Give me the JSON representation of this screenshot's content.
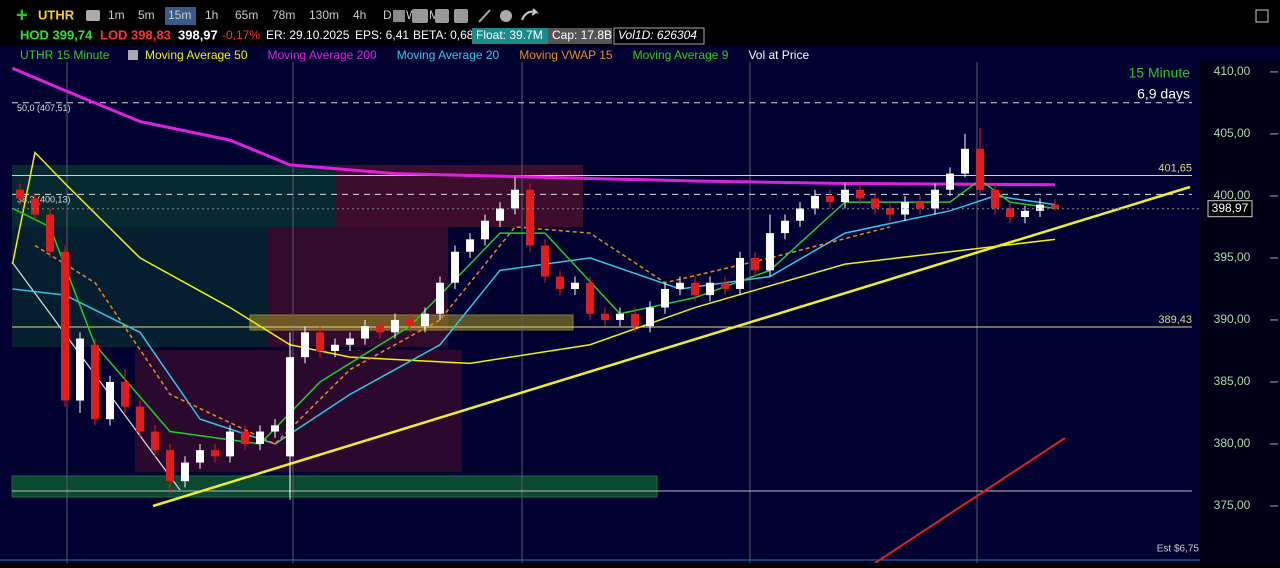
{
  "toolbar": {
    "symbol": "UTHR",
    "timeframes": [
      "1m",
      "5m",
      "15m",
      "1h",
      "65m",
      "78m",
      "130m",
      "4h",
      "D",
      "W",
      "M"
    ]
  },
  "quote": {
    "hod": "HOD 399,74",
    "lod": "LOD 398,83",
    "change": "-0,17%",
    "er": "ER: 29.10.2025",
    "eps": "EPS: 6,41",
    "beta": "BETA: 0,68",
    "float": "Float: 39.7M",
    "cap": "Cap: 17.8B",
    "vol": "Vol1D: 626304"
  },
  "chart_data": {
    "type": "candlestick",
    "title": "UTHR 15 Minute",
    "period": "15 Minute",
    "span": "6,9 days",
    "estimate": "Est $6,75",
    "extra_indicator": "Vol at Price",
    "up_color": "#ffffff",
    "down_color": "#e31b1b",
    "open": [
      400.5,
      399.8,
      398.5,
      395.5,
      383.5,
      388,
      382,
      385,
      383,
      381,
      379.5,
      377,
      378.5,
      379.5,
      379,
      381,
      380,
      381,
      379,
      387,
      389,
      387.5,
      388,
      388.5,
      389.5,
      389,
      390,
      389.5,
      390.5,
      393,
      395.5,
      396.5,
      398,
      399,
      400.5,
      396,
      393.5,
      392.5,
      393,
      390.5,
      390,
      390.5,
      389.5,
      391,
      392.5,
      393,
      392,
      393,
      392.5,
      395,
      394,
      397,
      398,
      399,
      400,
      399.5,
      400.5,
      399.8,
      399,
      398.5,
      399.5,
      399,
      400.5,
      401.8,
      403.8,
      400.5,
      399,
      398.3,
      398.8,
      399.3
    ],
    "high": [
      401,
      400.2,
      399,
      396,
      389,
      388.5,
      385.5,
      386,
      383.5,
      381.5,
      380,
      379,
      380,
      380,
      381.5,
      381.5,
      381.5,
      382,
      389,
      389.5,
      389.5,
      388.5,
      389,
      390,
      390,
      390.5,
      390.5,
      391,
      393.5,
      396,
      397,
      398.5,
      399.5,
      401.5,
      401,
      396.5,
      394,
      393.5,
      393.5,
      391,
      391,
      391,
      391.5,
      393,
      393.5,
      393.5,
      393.5,
      393.5,
      395.5,
      395.5,
      398.5,
      398.5,
      399.5,
      400.5,
      400.5,
      401,
      401,
      400.2,
      399.5,
      400,
      400,
      401,
      402.3,
      405,
      405.5,
      401,
      399.5,
      399.2,
      399.8,
      399.74
    ],
    "low": [
      399.3,
      398,
      395,
      383,
      382.5,
      381.5,
      381.5,
      382.5,
      380.5,
      379,
      376,
      376.5,
      378,
      378.5,
      378.5,
      379.5,
      379.5,
      380.5,
      375.5,
      386.5,
      387,
      387,
      387.5,
      388,
      388.5,
      388.5,
      389,
      389,
      390,
      392.5,
      395,
      396,
      397.5,
      398.5,
      395.5,
      393,
      392,
      392,
      390,
      389.5,
      389.5,
      389,
      389,
      390.5,
      392,
      391.5,
      391.5,
      392,
      392,
      393.5,
      393.5,
      396.5,
      397.5,
      398.5,
      399,
      399,
      399.3,
      398.5,
      398,
      398,
      398.5,
      398.5,
      400,
      401.5,
      400,
      398.5,
      397.8,
      397.8,
      398.3,
      398.83
    ],
    "close": [
      399.8,
      398.5,
      395.5,
      383.5,
      388.5,
      382,
      385,
      383,
      381,
      379.5,
      377,
      378.5,
      379.5,
      379,
      381,
      380,
      381,
      381.5,
      387,
      389,
      387.5,
      388,
      388.5,
      389.5,
      389,
      390,
      389.5,
      390.5,
      393,
      395.5,
      396.5,
      398,
      399,
      400.5,
      396,
      393.5,
      392.5,
      393,
      390.5,
      390,
      390.5,
      389.5,
      391,
      392.5,
      393,
      392,
      393,
      392.5,
      395,
      394,
      397,
      398,
      399,
      400,
      399.5,
      400.5,
      399.8,
      399,
      398.5,
      399.5,
      399,
      400.5,
      401.8,
      403.8,
      400.5,
      399,
      398.3,
      398.8,
      399.3,
      398.97
    ],
    "last": {
      "value": 398.97,
      "label": "398,97"
    },
    "series": [
      {
        "name": "Moving Average 50",
        "color": "#f2f200",
        "x": [
          -0.5,
          1,
          3,
          8,
          14,
          18,
          22,
          30,
          38,
          45,
          55,
          69
        ],
        "values": [
          394.5,
          403.5,
          401,
          395,
          391,
          388,
          387,
          386.5,
          388,
          391,
          394.5,
          396.5
        ]
      },
      {
        "name": "Moving Average 200",
        "color": "#e020e0",
        "x": [
          -0.5,
          3,
          8,
          14,
          18,
          25,
          35,
          45,
          55,
          69
        ],
        "values": [
          410.3,
          408.5,
          406,
          404.5,
          402.5,
          401.8,
          401.5,
          401.2,
          401,
          400.9
        ]
      },
      {
        "name": "Moving Average 20",
        "color": "#30c8e8",
        "x": [
          -0.5,
          3,
          8,
          12,
          17,
          22,
          28,
          32,
          38,
          44,
          50,
          55,
          62,
          65,
          69
        ],
        "values": [
          392.5,
          392,
          389,
          382,
          380,
          384,
          388,
          394,
          395,
          392.5,
          393.5,
          397,
          398.8,
          400,
          399.3
        ]
      },
      {
        "name": "Moving VWAP 15",
        "color": "#e88a20",
        "x": [
          1,
          5,
          10,
          17,
          22,
          28,
          33,
          38,
          43,
          50,
          58
        ],
        "values": [
          396,
          393,
          384,
          380,
          386,
          390,
          397.5,
          397,
          393,
          395,
          397.5
        ]
      },
      {
        "name": "Moving Average 9",
        "color": "#20d020",
        "x": [
          -0.5,
          2,
          5,
          10,
          16,
          20,
          26,
          32,
          35,
          40,
          45,
          50,
          55,
          62,
          64,
          66,
          69
        ],
        "values": [
          399,
          397.5,
          388,
          381,
          380,
          385,
          389.5,
          397,
          397,
          390.5,
          391.8,
          394,
          399.5,
          399.5,
          401.3,
          399.5,
          399
        ]
      }
    ],
    "levels": [
      {
        "value": 401.65,
        "label": "401,65"
      },
      {
        "value": 389.43,
        "label": "389,43"
      }
    ],
    "fib": [
      {
        "value": 407.51,
        "label": "50,0 (407,51)"
      },
      {
        "value": 400.13,
        "label": "38,2 (400,13)"
      }
    ],
    "ylim": [
      370.4,
      410.8
    ],
    "yticks": [
      {
        "value": 375,
        "label": "375,00"
      },
      {
        "value": 380,
        "label": "380,00"
      },
      {
        "value": 385,
        "label": "385,00"
      },
      {
        "value": 390,
        "label": "390,00"
      },
      {
        "value": 395,
        "label": "395,00"
      },
      {
        "value": 400,
        "label": "400,00"
      },
      {
        "value": 405,
        "label": "405,00"
      },
      {
        "value": 410,
        "label": "410,00"
      }
    ]
  }
}
